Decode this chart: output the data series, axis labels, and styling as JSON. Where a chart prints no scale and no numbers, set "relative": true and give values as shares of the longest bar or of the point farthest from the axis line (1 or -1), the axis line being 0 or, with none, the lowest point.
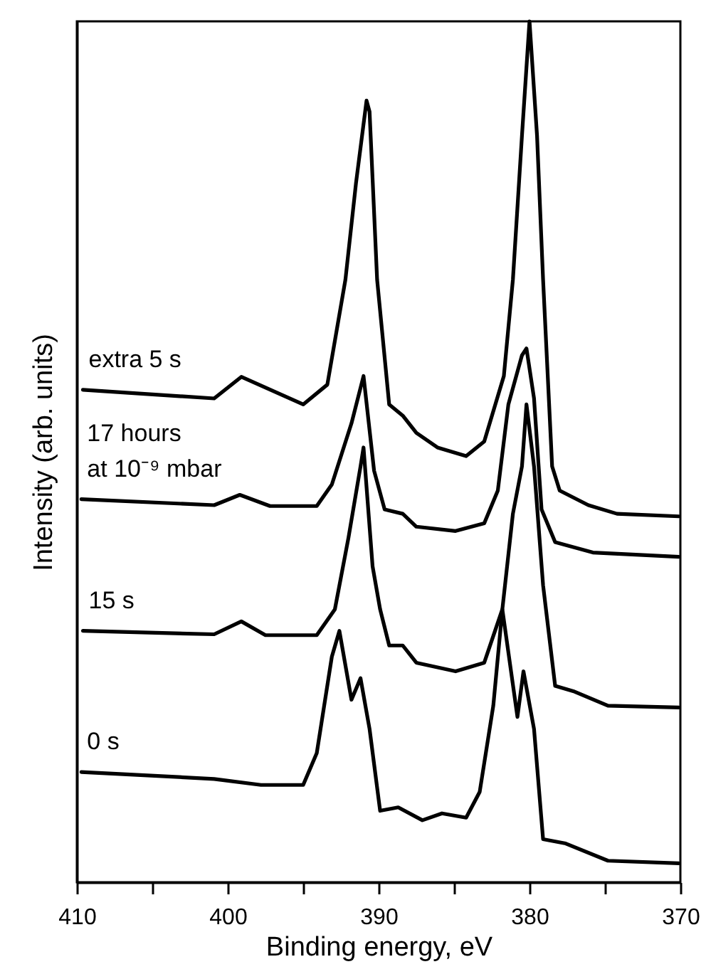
{
  "chart_data": {
    "type": "line",
    "relative": true,
    "xlabel": "Binding energy, eV",
    "ylabel": "Intensity (arb. units)",
    "xlim": [
      410,
      370
    ],
    "xticks": [
      410,
      {
        "value": 405,
        "label": null
      },
      400,
      {
        "value": 395,
        "label": null
      },
      390,
      {
        "value": 385,
        "label": null
      },
      380,
      {
        "value": 375,
        "label": null
      },
      370
    ],
    "series": [
      {
        "name": "extra 5 s",
        "color": "#000000",
        "x": [
          409.6,
          400.9,
          399.1,
          395.0,
          393.4,
          392.2,
          391.5,
          390.8,
          390.6,
          390.1,
          389.3,
          388.4,
          387.5,
          386.1,
          384.2,
          383.0,
          381.7,
          381.1,
          380.5,
          380.0,
          379.5,
          379.1,
          378.5,
          378.0,
          376.1,
          374.2,
          370.1
        ],
        "values": [
          0.572,
          0.562,
          0.587,
          0.555,
          0.578,
          0.7,
          0.812,
          0.908,
          0.895,
          0.7,
          0.555,
          0.542,
          0.522,
          0.505,
          0.495,
          0.512,
          0.588,
          0.7,
          0.867,
          1.0,
          0.867,
          0.7,
          0.483,
          0.455,
          0.438,
          0.428,
          0.425
        ]
      },
      {
        "name": "17 hours\nat 10⁻⁹ mbar",
        "color": "#000000",
        "x": [
          409.7,
          400.9,
          399.2,
          397.2,
          394.1,
          393.1,
          391.8,
          391.0,
          390.3,
          389.6,
          388.4,
          387.5,
          384.9,
          383.0,
          382.1,
          381.4,
          380.5,
          380.2,
          379.7,
          379.2,
          378.3,
          375.8,
          370.1
        ],
        "values": [
          0.445,
          0.438,
          0.45,
          0.437,
          0.437,
          0.462,
          0.533,
          0.588,
          0.478,
          0.433,
          0.428,
          0.413,
          0.408,
          0.417,
          0.455,
          0.555,
          0.612,
          0.62,
          0.562,
          0.433,
          0.395,
          0.383,
          0.378
        ]
      },
      {
        "name": "15 s",
        "color": "#000000",
        "x": [
          409.6,
          400.9,
          399.1,
          397.5,
          394.1,
          392.9,
          392.0,
          391.2,
          391.0,
          390.4,
          389.9,
          389.3,
          388.4,
          387.5,
          384.9,
          383.0,
          381.8,
          381.1,
          380.5,
          380.2,
          379.7,
          379.1,
          378.3,
          377.1,
          374.8,
          370.1
        ],
        "values": [
          0.292,
          0.288,
          0.303,
          0.287,
          0.287,
          0.317,
          0.4,
          0.483,
          0.505,
          0.367,
          0.317,
          0.275,
          0.275,
          0.255,
          0.245,
          0.255,
          0.317,
          0.428,
          0.483,
          0.555,
          0.483,
          0.345,
          0.228,
          0.222,
          0.205,
          0.203
        ]
      },
      {
        "name": "0 s",
        "color": "#000000",
        "x": [
          409.7,
          400.9,
          397.8,
          395.0,
          394.1,
          393.1,
          392.6,
          391.8,
          391.2,
          390.6,
          389.9,
          388.7,
          387.1,
          385.8,
          384.2,
          383.3,
          382.4,
          381.8,
          380.8,
          380.4,
          379.7,
          379.1,
          377.6,
          374.8,
          370.1
        ],
        "values": [
          0.128,
          0.12,
          0.113,
          0.113,
          0.15,
          0.262,
          0.292,
          0.212,
          0.237,
          0.178,
          0.083,
          0.087,
          0.072,
          0.08,
          0.075,
          0.105,
          0.205,
          0.317,
          0.192,
          0.245,
          0.178,
          0.05,
          0.045,
          0.025,
          0.022
        ]
      }
    ]
  }
}
